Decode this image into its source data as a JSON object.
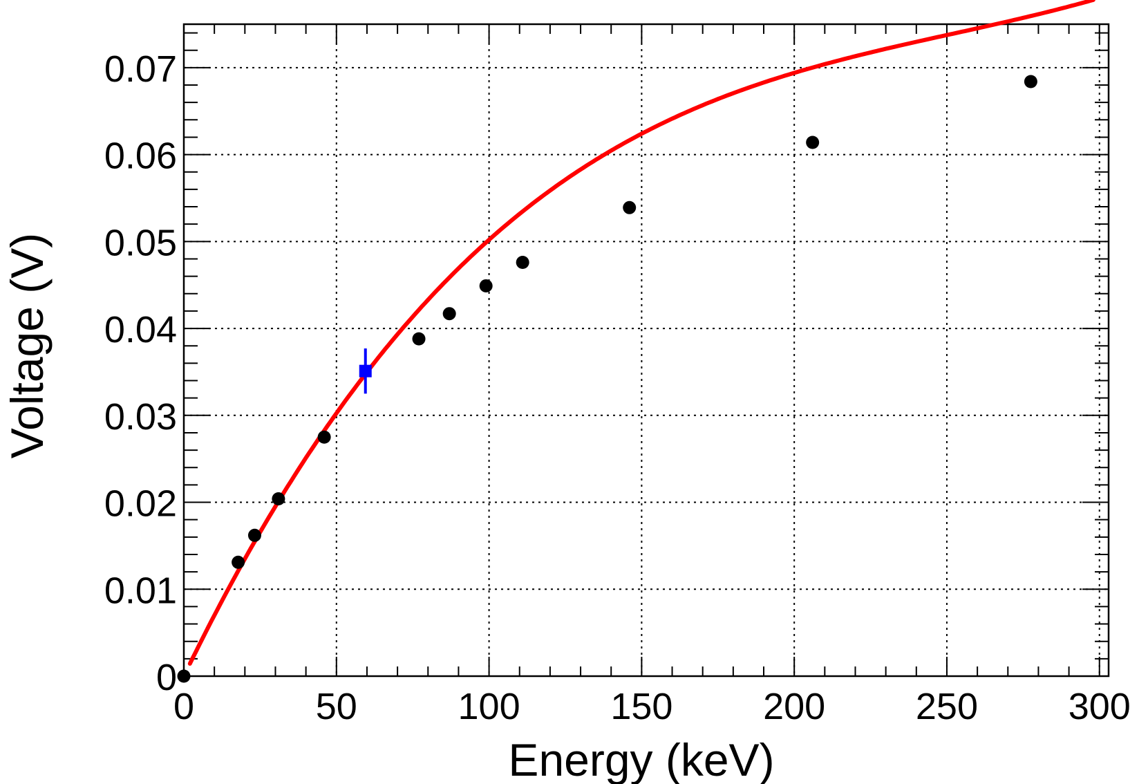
{
  "chart_data": {
    "type": "scatter",
    "xlabel": "Energy (keV)",
    "ylabel": "Voltage (V)",
    "xlim": [
      0,
      303
    ],
    "ylim": [
      0,
      0.075
    ],
    "grid": true,
    "x_ticks": [
      0,
      50,
      100,
      150,
      200,
      250,
      300
    ],
    "x_tick_labels": [
      "0",
      "50",
      "100",
      "150",
      "200",
      "250",
      "300"
    ],
    "y_ticks": [
      0,
      0.01,
      0.02,
      0.03,
      0.04,
      0.05,
      0.06,
      0.07
    ],
    "y_tick_labels": [
      "0",
      "0.01",
      "0.02",
      "0.03",
      "0.04",
      "0.05",
      "0.06",
      "0.07"
    ],
    "series": [
      {
        "kind": "points",
        "marker": "circle",
        "color": "#000000",
        "points": [
          {
            "x": 0,
            "y": 0
          },
          {
            "x": 17.8,
            "y": 0.0131
          },
          {
            "x": 23.2,
            "y": 0.0162
          },
          {
            "x": 31.0,
            "y": 0.0204
          },
          {
            "x": 46.0,
            "y": 0.0275
          },
          {
            "x": 77.0,
            "y": 0.0388
          },
          {
            "x": 87.0,
            "y": 0.0417
          },
          {
            "x": 99.0,
            "y": 0.0449
          },
          {
            "x": 111.0,
            "y": 0.0476
          },
          {
            "x": 146.0,
            "y": 0.0539
          },
          {
            "x": 206.0,
            "y": 0.0614
          },
          {
            "x": 277.5,
            "y": 0.0684
          }
        ]
      },
      {
        "kind": "points",
        "marker": "square",
        "color": "#0000ff",
        "points": [
          {
            "x": 59.5,
            "y": 0.0351,
            "yerr": 0.0026
          }
        ]
      },
      {
        "kind": "curve",
        "color": "#ff0000",
        "x_range": [
          2,
          298
        ],
        "model": "a*x + b*x^2 + c*x^3",
        "params": {
          "a": 0.000725,
          "b": -2.57e-06,
          "c": 3.4e-09
        }
      }
    ]
  }
}
